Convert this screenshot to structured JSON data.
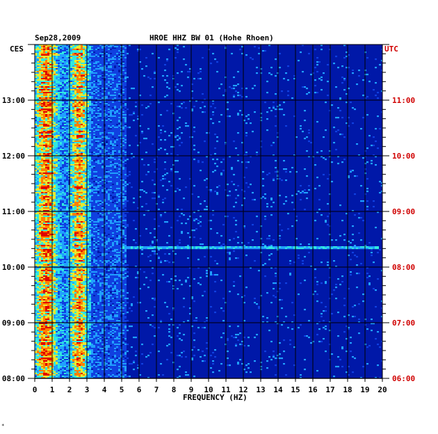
{
  "chart_data": {
    "type": "heatmap",
    "date": "Sep28,2009",
    "title": "HROE HHZ BW 01 (Hohe Rhoen)",
    "left_axis_label": "CES",
    "right_axis_label": "UTC",
    "xlabel": "FREQUENCY (HZ)",
    "xlim": [
      0,
      20
    ],
    "x_ticks": [
      "0",
      "1",
      "2",
      "3",
      "4",
      "5",
      "6",
      "7",
      "8",
      "9",
      "10",
      "11",
      "12",
      "13",
      "14",
      "15",
      "16",
      "17",
      "18",
      "19",
      "20"
    ],
    "y_ticks_local": [
      "08:00",
      "09:00",
      "10:00",
      "11:00",
      "12:00",
      "13:00"
    ],
    "y_ticks_utc": [
      "06:00",
      "07:00",
      "08:00",
      "09:00",
      "10:00",
      "11:00"
    ],
    "ylim_local": [
      "08:00",
      "14:00"
    ],
    "background_color": "#0018a8",
    "grid_color": "#000000",
    "utc_color": "#d00000",
    "colormap": [
      "#0018a8",
      "#1040e0",
      "#20a0ff",
      "#30e8e0",
      "#e8e830",
      "#ff8000",
      "#e00000"
    ],
    "notable_features": [
      {
        "kind": "narrow line",
        "time_local": "10:22",
        "freq_from": 5,
        "freq_to": 19.8
      },
      {
        "kind": "energy band",
        "freq_from": 0,
        "freq_to": 3.2
      }
    ]
  },
  "corner_mark": "∗"
}
